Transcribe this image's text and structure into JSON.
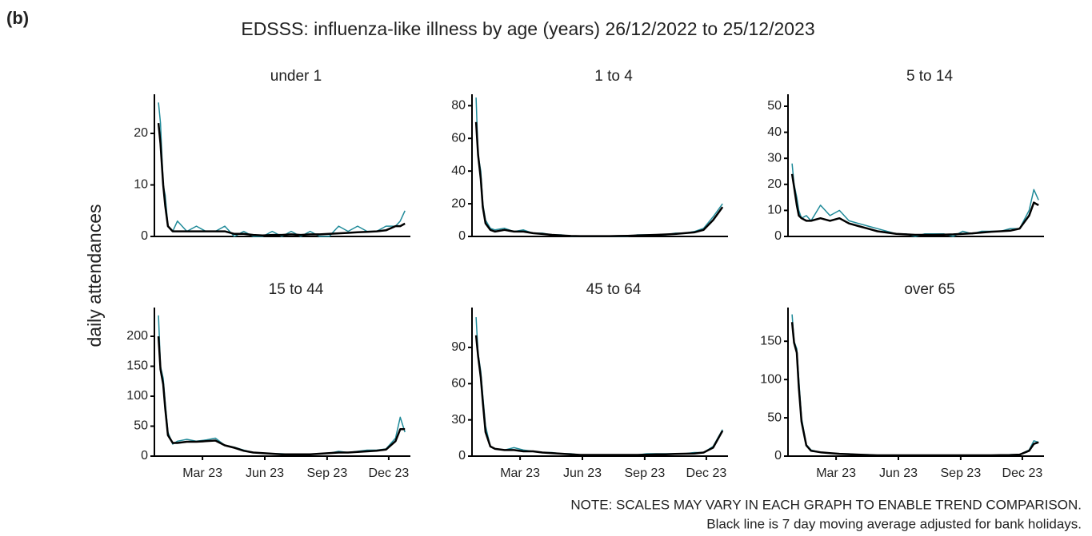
{
  "panel_label": "(b)",
  "title": "EDSSS: influenza-like illness by age (years) 26/12/2022 to 25/12/2023",
  "ylabel": "daily attendances",
  "notes": [
    "NOTE: SCALES MAY VARY IN EACH GRAPH TO ENABLE TREND COMPARISON.",
    "Black line is 7 day moving average adjusted for bank holidays."
  ],
  "chart_data": [
    {
      "type": "line",
      "title": "under 1",
      "x": [
        0,
        3,
        7,
        10,
        14,
        21,
        28,
        42,
        56,
        70,
        84,
        98,
        112,
        126,
        140,
        154,
        168,
        182,
        196,
        210,
        224,
        238,
        252,
        266,
        280,
        294,
        308,
        322,
        336,
        350,
        357,
        364
      ],
      "xlim": [
        -6,
        372
      ],
      "ylim": [
        0,
        27.6
      ],
      "yticks": [
        0,
        10,
        20
      ],
      "series": [
        {
          "color": "#1f8a99",
          "values": [
            26,
            22,
            10,
            8,
            2,
            1,
            3,
            1,
            2,
            1,
            1,
            2,
            0,
            1,
            0,
            0,
            1,
            0,
            1,
            0,
            1,
            0,
            0,
            2,
            1,
            2,
            1,
            1,
            2,
            2,
            3,
            5
          ]
        },
        {
          "color": "#000000",
          "values": [
            22,
            18,
            10,
            6,
            2,
            1,
            1,
            1,
            1,
            1,
            1,
            1,
            0.5,
            0.5,
            0.3,
            0.2,
            0.3,
            0.3,
            0.4,
            0.3,
            0.4,
            0.4,
            0.5,
            0.6,
            0.7,
            0.8,
            0.9,
            1,
            1.2,
            2,
            2,
            2.5
          ]
        }
      ]
    },
    {
      "type": "line",
      "title": "1 to 4",
      "x": [
        0,
        3,
        7,
        10,
        14,
        21,
        28,
        42,
        56,
        70,
        84,
        98,
        112,
        126,
        140,
        154,
        168,
        182,
        196,
        210,
        224,
        238,
        252,
        266,
        280,
        294,
        308,
        322,
        336,
        350,
        357,
        364
      ],
      "xlim": [
        -6,
        372
      ],
      "ylim": [
        0,
        87
      ],
      "yticks": [
        0,
        20,
        40,
        60,
        80
      ],
      "series": [
        {
          "color": "#1f8a99",
          "values": [
            85,
            50,
            40,
            20,
            10,
            5,
            4,
            5,
            3,
            4,
            2,
            2,
            1,
            1,
            0,
            0,
            0,
            0,
            0,
            0,
            0,
            1,
            1,
            1,
            1,
            2,
            2,
            3,
            5,
            12,
            16,
            20
          ]
        },
        {
          "color": "#000000",
          "values": [
            70,
            50,
            35,
            18,
            8,
            4,
            3,
            4,
            3,
            3,
            2,
            1.5,
            1,
            0.6,
            0.3,
            0.2,
            0.2,
            0.2,
            0.2,
            0.3,
            0.4,
            0.6,
            0.8,
            1,
            1.2,
            1.5,
            2,
            2.5,
            4,
            10,
            14,
            18
          ]
        }
      ]
    },
    {
      "type": "line",
      "title": "5 to 14",
      "x": [
        0,
        3,
        7,
        10,
        14,
        21,
        28,
        42,
        56,
        70,
        84,
        98,
        112,
        126,
        140,
        154,
        168,
        182,
        196,
        210,
        224,
        238,
        252,
        266,
        280,
        294,
        308,
        322,
        336,
        350,
        357,
        364
      ],
      "xlim": [
        -6,
        372
      ],
      "ylim": [
        0,
        54.6
      ],
      "yticks": [
        0,
        10,
        20,
        30,
        40,
        50
      ],
      "series": [
        {
          "color": "#1f8a99",
          "values": [
            28,
            20,
            15,
            10,
            7,
            8,
            6,
            12,
            8,
            10,
            6,
            5,
            4,
            3,
            2,
            1,
            1,
            0,
            1,
            1,
            1,
            0,
            2,
            1,
            2,
            2,
            2,
            3,
            3,
            10,
            18,
            14
          ]
        },
        {
          "color": "#000000",
          "values": [
            24,
            19,
            12,
            8,
            7,
            6,
            6,
            7,
            6,
            7,
            5,
            4,
            3,
            2,
            1.5,
            1,
            0.8,
            0.6,
            0.6,
            0.6,
            0.7,
            0.8,
            1,
            1.2,
            1.5,
            1.8,
            2,
            2.2,
            3,
            8,
            13,
            12
          ]
        }
      ]
    },
    {
      "type": "line",
      "title": "15 to 44",
      "x": [
        0,
        3,
        7,
        10,
        14,
        21,
        28,
        42,
        56,
        70,
        84,
        98,
        112,
        126,
        140,
        154,
        168,
        182,
        196,
        210,
        224,
        238,
        252,
        266,
        280,
        294,
        308,
        322,
        336,
        350,
        357,
        364
      ],
      "xlim": [
        -6,
        372
      ],
      "ylim": [
        0,
        248
      ],
      "yticks": [
        0,
        50,
        100,
        150,
        200
      ],
      "xticks": [
        {
          "value": 65,
          "label": "Mar 23"
        },
        {
          "value": 157,
          "label": "Jun 23"
        },
        {
          "value": 249,
          "label": "Sep 23"
        },
        {
          "value": 340,
          "label": "Dec 23"
        }
      ],
      "series": [
        {
          "color": "#1f8a99",
          "values": [
            235,
            150,
            130,
            90,
            40,
            20,
            25,
            28,
            25,
            27,
            30,
            18,
            15,
            10,
            6,
            5,
            4,
            4,
            3,
            3,
            3,
            4,
            5,
            8,
            6,
            8,
            10,
            10,
            12,
            30,
            65,
            40
          ]
        },
        {
          "color": "#000000",
          "values": [
            200,
            145,
            120,
            80,
            35,
            22,
            22,
            24,
            24,
            25,
            26,
            18,
            14,
            9,
            6,
            5,
            4,
            3,
            3,
            3,
            3,
            4,
            5,
            6,
            6,
            7,
            8,
            9,
            11,
            25,
            45,
            45
          ]
        }
      ]
    },
    {
      "type": "line",
      "title": "45 to 64",
      "x": [
        0,
        3,
        7,
        10,
        14,
        21,
        28,
        42,
        56,
        70,
        84,
        98,
        112,
        126,
        140,
        154,
        168,
        182,
        196,
        210,
        224,
        238,
        252,
        266,
        280,
        294,
        308,
        322,
        336,
        350,
        357,
        364
      ],
      "xlim": [
        -6,
        372
      ],
      "ylim": [
        0,
        123
      ],
      "yticks": [
        0,
        30,
        60,
        90
      ],
      "xticks": [
        {
          "value": 65,
          "label": "Mar 23"
        },
        {
          "value": 157,
          "label": "Jun 23"
        },
        {
          "value": 249,
          "label": "Sep 23"
        },
        {
          "value": 340,
          "label": "Dec 23"
        }
      ],
      "series": [
        {
          "color": "#1f8a99",
          "values": [
            115,
            85,
            70,
            50,
            25,
            8,
            6,
            5,
            7,
            5,
            4,
            3,
            3,
            2,
            2,
            1,
            1,
            1,
            1,
            1,
            1,
            1,
            2,
            2,
            2,
            2,
            2,
            3,
            3,
            8,
            15,
            22
          ]
        },
        {
          "color": "#000000",
          "values": [
            100,
            83,
            65,
            45,
            20,
            8,
            6,
            5,
            5,
            4,
            4,
            3,
            2.5,
            2,
            1.5,
            1,
            1,
            1,
            1,
            1,
            1,
            1,
            1.2,
            1.5,
            1.5,
            1.8,
            2,
            2.2,
            3,
            7,
            14,
            21
          ]
        }
      ]
    },
    {
      "type": "line",
      "title": "over 65",
      "x": [
        0,
        3,
        7,
        10,
        14,
        21,
        28,
        42,
        56,
        70,
        84,
        98,
        112,
        126,
        140,
        154,
        168,
        182,
        196,
        210,
        224,
        238,
        252,
        266,
        280,
        294,
        308,
        322,
        336,
        350,
        357,
        364
      ],
      "xlim": [
        -6,
        372
      ],
      "ylim": [
        0,
        194
      ],
      "yticks": [
        0,
        50,
        100,
        150
      ],
      "xticks": [
        {
          "value": 65,
          "label": "Mar 23"
        },
        {
          "value": 157,
          "label": "Jun 23"
        },
        {
          "value": 249,
          "label": "Sep 23"
        },
        {
          "value": 340,
          "label": "Dec 23"
        }
      ],
      "series": [
        {
          "color": "#1f8a99",
          "values": [
            185,
            150,
            140,
            100,
            50,
            15,
            8,
            5,
            4,
            3,
            3,
            2,
            2,
            1,
            1,
            1,
            1,
            1,
            1,
            1,
            1,
            1,
            1,
            1,
            1,
            1,
            1,
            2,
            2,
            8,
            20,
            18
          ]
        },
        {
          "color": "#000000",
          "values": [
            175,
            148,
            135,
            90,
            45,
            14,
            7,
            5,
            4,
            3,
            2.5,
            2,
            1.5,
            1,
            1,
            1,
            1,
            1,
            1,
            1,
            1,
            1,
            1,
            1,
            1,
            1,
            1.2,
            1.5,
            2,
            7,
            16,
            18
          ]
        }
      ]
    }
  ]
}
